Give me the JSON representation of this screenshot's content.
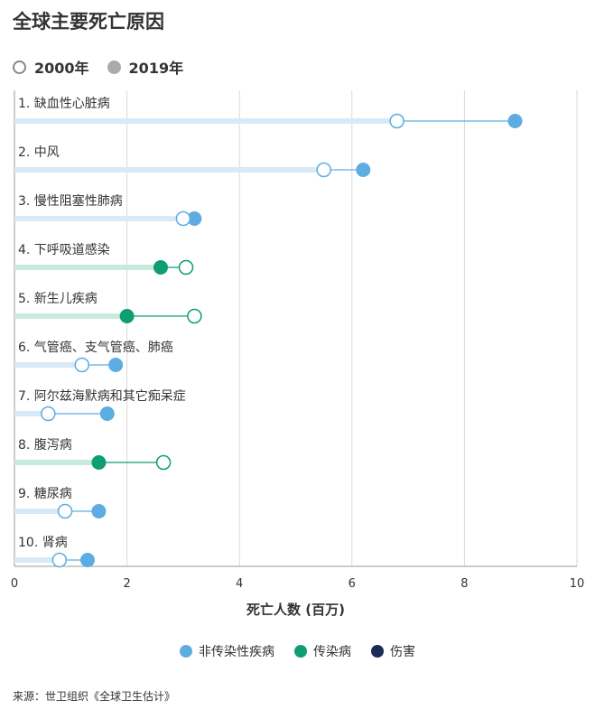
{
  "title": "全球主要死亡原因",
  "year_legend": {
    "items": [
      {
        "label": "2000年",
        "style": "hollow",
        "color": "#888888"
      },
      {
        "label": "2019年",
        "style": "filled",
        "color": "#aaaaaa"
      }
    ]
  },
  "category_legend": {
    "items": [
      {
        "label": "非传染性疾病",
        "color": "#5dade2"
      },
      {
        "label": "传染病",
        "color": "#0f9d73"
      },
      {
        "label": "伤害",
        "color": "#1a2b57"
      }
    ]
  },
  "source": "来源：世卫组织《全球卫生估计》",
  "chart_data": {
    "type": "dumbbell",
    "xlabel": "死亡人数 (百万)",
    "xlim": [
      0,
      10
    ],
    "xticks": [
      "0",
      "2",
      "4",
      "6",
      "8",
      "10"
    ],
    "grid": true,
    "series_names": [
      "2000年",
      "2019年"
    ],
    "categories": [
      {
        "label": "1. 缺血性心脏病",
        "group": "非传染性疾病",
        "v2000": 6.8,
        "v2019": 8.9
      },
      {
        "label": "2. 中风",
        "group": "非传染性疾病",
        "v2000": 5.5,
        "v2019": 6.2
      },
      {
        "label": "3. 慢性阻塞性肺病",
        "group": "非传染性疾病",
        "v2000": 3.0,
        "v2019": 3.2
      },
      {
        "label": "4. 下呼吸道感染",
        "group": "传染病",
        "v2000": 3.05,
        "v2019": 2.6
      },
      {
        "label": "5. 新生儿疾病",
        "group": "传染病",
        "v2000": 3.2,
        "v2019": 2.0
      },
      {
        "label": "6. 气管癌、支气管癌、肺癌",
        "group": "非传染性疾病",
        "v2000": 1.2,
        "v2019": 1.8
      },
      {
        "label": "7. 阿尔兹海默病和其它痴呆症",
        "group": "非传染性疾病",
        "v2000": 0.6,
        "v2019": 1.65
      },
      {
        "label": "8. 腹泻病",
        "group": "传染病",
        "v2000": 2.65,
        "v2019": 1.5
      },
      {
        "label": "9. 糖尿病",
        "group": "非传染性疾病",
        "v2000": 0.9,
        "v2019": 1.5
      },
      {
        "label": "10. 肾病",
        "group": "非传染性疾病",
        "v2000": 0.8,
        "v2019": 1.3
      }
    ]
  }
}
